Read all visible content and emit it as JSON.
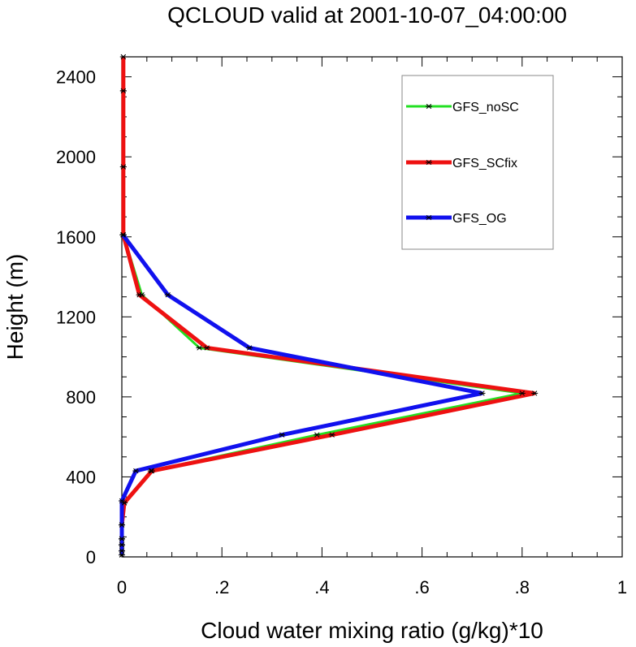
{
  "chart_data": {
    "type": "line",
    "title": "QCLOUD valid at 2001-10-07_04:00:00",
    "xlabel": "Cloud water mixing ratio (g/kg)*10",
    "ylabel": "Height (m)",
    "xlim": [
      0,
      1
    ],
    "ylim": [
      0,
      2500
    ],
    "x_ticks": [
      0,
      0.2,
      0.4,
      0.6,
      0.8,
      1
    ],
    "x_tick_labels": [
      "0",
      ".2",
      ".4",
      ".6",
      ".8",
      "1"
    ],
    "y_ticks": [
      0,
      400,
      800,
      1200,
      1600,
      2000,
      2400
    ],
    "y_tick_labels": [
      "0",
      "400",
      "800",
      "1200",
      "1600",
      "2000",
      "2400"
    ],
    "grid": false,
    "legend": "top-right",
    "marker": "asterisk",
    "series": [
      {
        "name": "GFS_noSC",
        "color": "#22e022",
        "points": [
          [
            0.0,
            10
          ],
          [
            0.0,
            30
          ],
          [
            0.0,
            60
          ],
          [
            0.0,
            90
          ],
          [
            0.0,
            160
          ],
          [
            0.005,
            270
          ],
          [
            0.058,
            430
          ],
          [
            0.39,
            610
          ],
          [
            0.8,
            818
          ],
          [
            0.155,
            1045
          ],
          [
            0.04,
            1310
          ],
          [
            0.003,
            1610
          ],
          [
            0.003,
            1950
          ],
          [
            0.003,
            2330
          ],
          [
            0.003,
            2500
          ]
        ]
      },
      {
        "name": "GFS_SCfix",
        "color": "#ee1111",
        "points": [
          [
            0.0,
            10
          ],
          [
            0.0,
            30
          ],
          [
            0.0,
            60
          ],
          [
            0.0,
            90
          ],
          [
            0.0,
            160
          ],
          [
            0.005,
            270
          ],
          [
            0.06,
            430
          ],
          [
            0.42,
            610
          ],
          [
            0.825,
            818
          ],
          [
            0.17,
            1045
          ],
          [
            0.035,
            1310
          ],
          [
            0.003,
            1610
          ],
          [
            0.003,
            1950
          ],
          [
            0.003,
            2330
          ],
          [
            0.003,
            2500
          ]
        ]
      },
      {
        "name": "GFS_OG",
        "color": "#1111ee",
        "points": [
          [
            0.0,
            10
          ],
          [
            0.0,
            30
          ],
          [
            0.0,
            60
          ],
          [
            0.0,
            90
          ],
          [
            0.0,
            160
          ],
          [
            0.0,
            280
          ],
          [
            0.028,
            430
          ],
          [
            0.32,
            610
          ],
          [
            0.72,
            818
          ],
          [
            0.255,
            1045
          ],
          [
            0.092,
            1310
          ],
          [
            0.002,
            1610
          ]
        ]
      }
    ]
  }
}
